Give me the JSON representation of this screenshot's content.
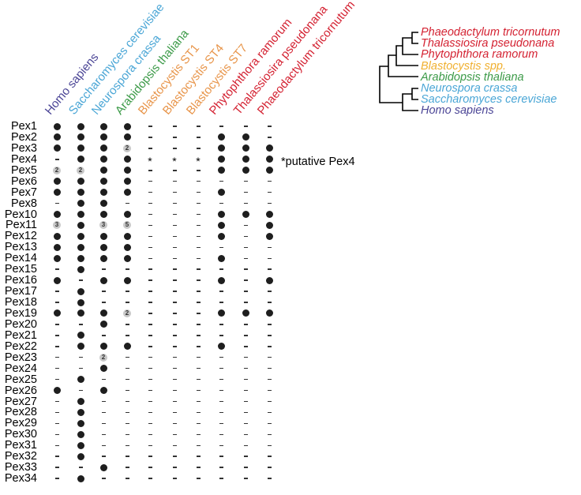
{
  "columns": [
    {
      "name": "Homo sapiens",
      "color": "#4b4596"
    },
    {
      "name": "Saccharomyces cerevisiae",
      "color": "#4aa6d6"
    },
    {
      "name": "Neurospora crassa",
      "color": "#4aa6d6"
    },
    {
      "name": "Arabidopsis thaliana",
      "color": "#3c9a48"
    },
    {
      "name": "Blastocystis ST1",
      "color": "#e8954a"
    },
    {
      "name": "Blastocystis ST4",
      "color": "#e8954a"
    },
    {
      "name": "Blastocystis ST7",
      "color": "#e8954a"
    },
    {
      "name": "Phytophthora ramorum",
      "color": "#d42232"
    },
    {
      "name": "Thalassiosira pseudonana",
      "color": "#d42232"
    },
    {
      "name": "Phaeodactylum tricornutum",
      "color": "#d42232"
    }
  ],
  "rows": [
    {
      "label": "Pex1",
      "cells": [
        "1",
        "1",
        "1",
        "1",
        "-",
        "-",
        "-",
        "-",
        "-",
        "-"
      ]
    },
    {
      "label": "Pex2",
      "cells": [
        "1",
        "1",
        "1",
        "1",
        "-",
        "-",
        "-",
        "1",
        "1",
        "-"
      ]
    },
    {
      "label": "Pex3",
      "cells": [
        "1",
        "1",
        "1",
        "2",
        "-",
        "-",
        "-",
        "1",
        "1",
        "1"
      ]
    },
    {
      "label": "Pex4",
      "cells": [
        "-",
        "1",
        "1",
        "1",
        "*",
        "*",
        "*",
        "1",
        "1",
        "1"
      ]
    },
    {
      "label": "Pex5",
      "cells": [
        "2",
        "2",
        "1",
        "1",
        "-",
        "-",
        "-",
        "1",
        "1",
        "1"
      ]
    },
    {
      "label": "Pex6",
      "cells": [
        "1",
        "1",
        "1",
        "1",
        "-",
        "-",
        "-",
        "-",
        "-",
        "-"
      ]
    },
    {
      "label": "Pex7",
      "cells": [
        "1",
        "1",
        "1",
        "1",
        "-",
        "-",
        "-",
        "1",
        "-",
        "-"
      ]
    },
    {
      "label": "Pex8",
      "cells": [
        "-",
        "1",
        "1",
        "-",
        "-",
        "-",
        "-",
        "-",
        "-",
        "-"
      ]
    },
    {
      "label": "Pex10",
      "cells": [
        "1",
        "1",
        "1",
        "1",
        "-",
        "-",
        "-",
        "1",
        "1",
        "1"
      ]
    },
    {
      "label": "Pex11",
      "cells": [
        "3",
        "1",
        "3",
        "5",
        "-",
        "-",
        "-",
        "1",
        "-",
        "1"
      ]
    },
    {
      "label": "Pex12",
      "cells": [
        "1",
        "1",
        "1",
        "1",
        "-",
        "-",
        "-",
        "1",
        "-",
        "1"
      ]
    },
    {
      "label": "Pex13",
      "cells": [
        "1",
        "1",
        "1",
        "1",
        "-",
        "-",
        "-",
        "-",
        "-",
        "-"
      ]
    },
    {
      "label": "Pex14",
      "cells": [
        "1",
        "1",
        "1",
        "1",
        "-",
        "-",
        "-",
        "1",
        "-",
        "-"
      ]
    },
    {
      "label": "Pex15",
      "cells": [
        "-",
        "1",
        "-",
        "-",
        "-",
        "-",
        "-",
        "-",
        "-",
        "-"
      ]
    },
    {
      "label": "Pex16",
      "cells": [
        "1",
        "-",
        "1",
        "1",
        "-",
        "-",
        "-",
        "1",
        "-",
        "1"
      ]
    },
    {
      "label": "Pex17",
      "cells": [
        "-",
        "1",
        "-",
        "-",
        "-",
        "-",
        "-",
        "-",
        "-",
        "-"
      ]
    },
    {
      "label": "Pex18",
      "cells": [
        "-",
        "1",
        "-",
        "-",
        "-",
        "-",
        "-",
        "-",
        "-",
        "-"
      ]
    },
    {
      "label": "Pex19",
      "cells": [
        "1",
        "1",
        "1",
        "2",
        "-",
        "-",
        "-",
        "1",
        "1",
        "1"
      ]
    },
    {
      "label": "Pex20",
      "cells": [
        "-",
        "-",
        "1",
        "-",
        "-",
        "-",
        "-",
        "-",
        "-",
        "-"
      ]
    },
    {
      "label": "Pex21",
      "cells": [
        "-",
        "1",
        "-",
        "-",
        "-",
        "-",
        "-",
        "-",
        "-",
        "-"
      ]
    },
    {
      "label": "Pex22",
      "cells": [
        "-",
        "1",
        "1",
        "1",
        "-",
        "-",
        "-",
        "1",
        "-",
        "-"
      ]
    },
    {
      "label": "Pex23",
      "cells": [
        "-",
        "-",
        "2",
        "-",
        "-",
        "-",
        "-",
        "-",
        "-",
        "-"
      ]
    },
    {
      "label": "Pex24",
      "cells": [
        "-",
        "-",
        "1",
        "-",
        "-",
        "-",
        "-",
        "-",
        "-",
        "-"
      ]
    },
    {
      "label": "Pex25",
      "cells": [
        "-",
        "1",
        "-",
        "-",
        "-",
        "-",
        "-",
        "-",
        "-",
        "-"
      ]
    },
    {
      "label": "Pex26",
      "cells": [
        "1",
        "-",
        "1",
        "-",
        "-",
        "-",
        "-",
        "-",
        "-",
        "-"
      ]
    },
    {
      "label": "Pex27",
      "cells": [
        "-",
        "1",
        "-",
        "-",
        "-",
        "-",
        "-",
        "-",
        "-",
        "-"
      ]
    },
    {
      "label": "Pex28",
      "cells": [
        "-",
        "1",
        "-",
        "-",
        "-",
        "-",
        "-",
        "-",
        "-",
        "-"
      ]
    },
    {
      "label": "Pex29",
      "cells": [
        "-",
        "1",
        "-",
        "-",
        "-",
        "-",
        "-",
        "-",
        "-",
        "-"
      ]
    },
    {
      "label": "Pex30",
      "cells": [
        "-",
        "1",
        "-",
        "-",
        "-",
        "-",
        "-",
        "-",
        "-",
        "-"
      ]
    },
    {
      "label": "Pex31",
      "cells": [
        "-",
        "1",
        "-",
        "-",
        "-",
        "-",
        "-",
        "-",
        "-",
        "-"
      ]
    },
    {
      "label": "Pex32",
      "cells": [
        "-",
        "1",
        "-",
        "-",
        "-",
        "-",
        "-",
        "-",
        "-",
        "-"
      ]
    },
    {
      "label": "Pex33",
      "cells": [
        "-",
        "-",
        "1",
        "-",
        "-",
        "-",
        "-",
        "-",
        "-",
        "-"
      ]
    },
    {
      "label": "Pex34",
      "cells": [
        "-",
        "1",
        "-",
        "-",
        "-",
        "-",
        "-",
        "-",
        "-",
        "-"
      ]
    }
  ],
  "note": "*putative Pex4",
  "tree_leaves": [
    {
      "name": "Phaeodactylum tricornutum",
      "color": "#d42232"
    },
    {
      "name": "Thalassiosira pseudonana",
      "color": "#d42232"
    },
    {
      "name": "Phytophthora ramorum",
      "color": "#d42232"
    },
    {
      "name": "Blastocystis spp.",
      "color": "#f0b030"
    },
    {
      "name": "Arabidopsis thaliana",
      "color": "#3c9a48"
    },
    {
      "name": "Neurospora crassa",
      "color": "#4aa6d6"
    },
    {
      "name": "Saccharomyces cerevisiae",
      "color": "#4aa6d6"
    },
    {
      "name": "Homo sapiens",
      "color": "#4b4596"
    }
  ]
}
